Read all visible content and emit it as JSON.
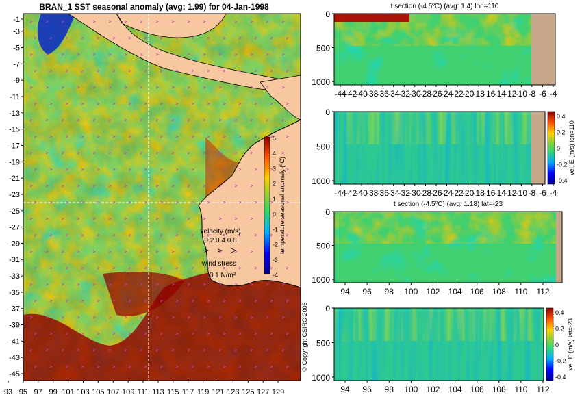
{
  "map": {
    "title": "BRAN_1  SST seasonal anomaly (avg: 1.99) for 04-Jan-1998",
    "y_ticks": [
      "-1",
      "-3",
      "-5",
      "-7",
      "-9",
      "-11",
      "-13",
      "-15",
      "-17",
      "-19",
      "-21",
      "-23",
      "-25",
      "-27",
      "-29",
      "-31",
      "-33",
      "-35",
      "-37",
      "-39",
      "-41",
      "-43",
      "-45"
    ],
    "x_ticks": [
      "93",
      "95",
      "97",
      "99",
      "101",
      "103",
      "105",
      "107",
      "109",
      "111",
      "113",
      "115",
      "117",
      "119",
      "121",
      "123",
      "125",
      "127",
      "129"
    ],
    "colorbar_label": "temperature seasonal anomaly (ºC)",
    "colorbar_ticks": [
      "5",
      "4",
      "3",
      "2",
      "1",
      "0",
      "-1",
      "-2",
      "-3",
      "-4"
    ],
    "velocity_label": "velocity (m/s)",
    "velocity_values": "0.2 0.4 0.8",
    "wind_label": "wind stress",
    "wind_value": "0.1 N/m²",
    "copyright": "© Copyright CSIRO 2006"
  },
  "panels": [
    {
      "title": "t section (-4.5ºC) (avg: 1.4) lon=110",
      "x_ticks": [
        "-44",
        "-42",
        "-40",
        "-38",
        "-36",
        "-34",
        "-32",
        "-30",
        "-28",
        "-26",
        "-24",
        "-22",
        "-20",
        "-18",
        "-16",
        "-14",
        "-12",
        "-10",
        "-8",
        "-6",
        "-4"
      ],
      "y_ticks": [
        "0",
        "500",
        "1000"
      ]
    },
    {
      "title": "",
      "x_ticks": [
        "-44",
        "-42",
        "-40",
        "-38",
        "-36",
        "-34",
        "-32",
        "-30",
        "-28",
        "-26",
        "-24",
        "-22",
        "-20",
        "-18",
        "-16",
        "-14",
        "-12",
        "-10",
        "-8",
        "-6",
        "-4"
      ],
      "y_ticks": [
        "0",
        "500",
        "1000"
      ],
      "colorbar_label": "vel. E (m/s) lon=110",
      "colorbar_ticks": [
        "0.4",
        "0.2",
        "0",
        "-0.2",
        "-0.4"
      ]
    },
    {
      "title": "t section (-4.5ºC) (avg: 1.18) lat=-23",
      "x_ticks": [
        "94",
        "96",
        "98",
        "100",
        "102",
        "104",
        "106",
        "108",
        "110",
        "112"
      ],
      "y_ticks": [
        "0",
        "500",
        "1000"
      ]
    },
    {
      "title": "",
      "x_ticks": [
        "94",
        "96",
        "98",
        "100",
        "102",
        "104",
        "106",
        "108",
        "110",
        "112"
      ],
      "y_ticks": [
        "0",
        "500",
        "1000"
      ],
      "colorbar_label": "vel. E (m/s) lat=-23",
      "colorbar_ticks": [
        "0.4",
        "0.2",
        "0",
        "-0.2",
        "-0.4"
      ]
    }
  ],
  "colors": {
    "land": "#f7c8a0",
    "section_land": "#c8a88a",
    "ocean_base": "#7fd060",
    "warm": "#9b0000",
    "cold": "#00008f"
  },
  "chart_data": [
    {
      "type": "heatmap",
      "title": "BRAN_1  SST seasonal anomaly (avg: 1.99) for 04-Jan-1998",
      "x_range": [
        93,
        130
      ],
      "y_range": [
        -45,
        0
      ],
      "color_range": [
        -4,
        5
      ],
      "legend": "right"
    },
    {
      "type": "heatmap",
      "title": "t section (-4.5ºC) (avg: 1.4) lon=110",
      "x_range": [
        -45,
        -3
      ],
      "y_range": [
        1050,
        0
      ]
    },
    {
      "type": "heatmap",
      "title": "",
      "x_range": [
        -45,
        -3
      ],
      "y_range": [
        1050,
        0
      ],
      "color_range": [
        -0.4,
        0.4
      ]
    },
    {
      "type": "heatmap",
      "title": "t section (-4.5ºC) (avg: 1.18) lat=-23",
      "x_range": [
        93,
        114
      ],
      "y_range": [
        1050,
        0
      ]
    },
    {
      "type": "heatmap",
      "title": "",
      "x_range": [
        93,
        114
      ],
      "y_range": [
        1050,
        0
      ],
      "color_range": [
        -0.4,
        0.4
      ]
    }
  ]
}
